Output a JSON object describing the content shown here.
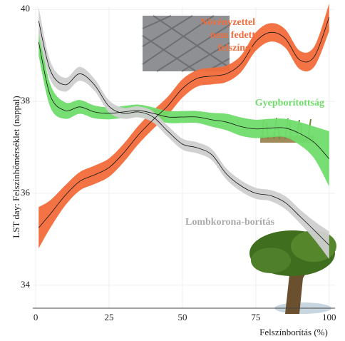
{
  "chart_data": {
    "type": "line",
    "x_label": "Felszínborítás (%)",
    "y_label": "LST day: Felszínhőmérséklet (nappal)",
    "xlim": [
      -1,
      102
    ],
    "ylim": [
      33.5,
      40.05
    ],
    "xticks": [
      0,
      25,
      50,
      75,
      100
    ],
    "yticks": [
      34,
      36,
      38,
      40
    ],
    "x": [
      1,
      5,
      10,
      15,
      20,
      25,
      30,
      35,
      40,
      45,
      50,
      55,
      60,
      65,
      70,
      75,
      80,
      85,
      90,
      95,
      100
    ],
    "series": [
      {
        "label_lines": [
          "Növényzettel",
          "nem fedett",
          "felszínek"
        ],
        "color": "#f26b3a",
        "values": [
          35.25,
          35.55,
          35.95,
          36.26,
          36.4,
          36.56,
          36.88,
          37.27,
          37.6,
          37.9,
          38.28,
          38.5,
          38.55,
          38.6,
          38.82,
          39.3,
          39.5,
          39.37,
          38.9,
          38.98,
          39.83
        ],
        "ci": [
          0.45,
          0.3,
          0.22,
          0.2,
          0.2,
          0.2,
          0.2,
          0.2,
          0.2,
          0.2,
          0.2,
          0.18,
          0.18,
          0.18,
          0.18,
          0.2,
          0.2,
          0.2,
          0.2,
          0.22,
          0.3
        ]
      },
      {
        "label_lines": [
          "Gyepborítottság"
        ],
        "color": "#6fdc6a",
        "values": [
          39.29,
          38.12,
          37.8,
          37.88,
          37.77,
          37.74,
          37.77,
          37.8,
          37.74,
          37.66,
          37.66,
          37.66,
          37.6,
          37.55,
          37.45,
          37.4,
          37.42,
          37.42,
          37.3,
          37.1,
          36.75
        ],
        "ci": [
          0.3,
          0.25,
          0.18,
          0.15,
          0.14,
          0.13,
          0.13,
          0.13,
          0.13,
          0.13,
          0.13,
          0.13,
          0.15,
          0.18,
          0.2,
          0.2,
          0.2,
          0.2,
          0.25,
          0.35,
          0.6
        ]
      },
      {
        "label_lines": [
          "Lombkorona-borítás"
        ],
        "color": "#cfcfcf",
        "values": [
          39.75,
          38.67,
          38.36,
          38.6,
          38.36,
          37.89,
          37.74,
          37.77,
          37.66,
          37.35,
          37.07,
          36.99,
          36.84,
          36.42,
          36.16,
          36.0,
          35.95,
          35.8,
          35.5,
          35.19,
          34.87
        ],
        "ci": [
          0.3,
          0.2,
          0.15,
          0.15,
          0.13,
          0.13,
          0.12,
          0.12,
          0.12,
          0.12,
          0.12,
          0.12,
          0.12,
          0.12,
          0.12,
          0.12,
          0.12,
          0.14,
          0.15,
          0.2,
          0.3
        ]
      }
    ]
  }
}
